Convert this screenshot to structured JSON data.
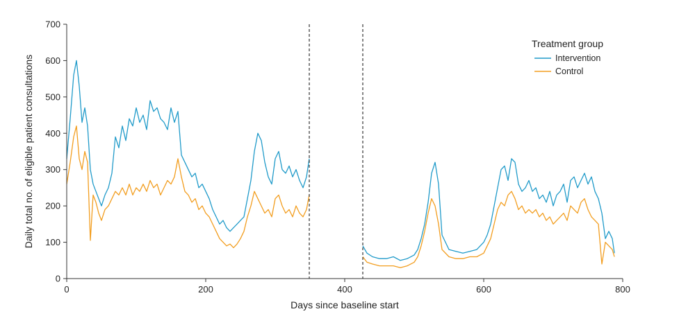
{
  "chart_data": {
    "type": "line",
    "title": "",
    "xlabel": "Days since baseline start",
    "ylabel": "Daily total no. of eligible patient consultations",
    "xlim": [
      0,
      800
    ],
    "ylim": [
      0,
      700
    ],
    "x_ticks": [
      0,
      200,
      400,
      600,
      800
    ],
    "y_ticks": [
      0,
      100,
      200,
      300,
      400,
      500,
      600,
      700
    ],
    "x_tick_labels": [
      "0",
      "200",
      "400",
      "600",
      "800"
    ],
    "y_tick_labels": [
      "0",
      "100",
      "200",
      "300",
      "400",
      "500",
      "600",
      "700"
    ],
    "grid": false,
    "vertical_lines": [
      349,
      426
    ],
    "legend": {
      "title": "Treatment group",
      "placement": "top-right",
      "entries": [
        "Intervention",
        "Control"
      ]
    },
    "series": [
      {
        "name": "Intervention",
        "color": "#1f9ac9",
        "segments": [
          {
            "x": [
              0,
              5,
              10,
              14,
              18,
              22,
              26,
              30,
              34,
              38,
              42,
              46,
              50,
              55,
              60,
              65,
              70,
              75,
              80,
              85,
              90,
              95,
              100,
              105,
              110,
              115,
              120,
              125,
              130,
              135,
              140,
              145,
              150,
              155,
              160,
              165,
              170,
              175,
              180,
              185,
              190,
              195,
              200,
              205,
              210,
              215,
              220,
              225,
              230,
              235,
              240,
              245,
              250,
              255,
              260,
              265,
              270,
              275,
              280,
              285,
              290,
              295,
              300,
              305,
              310,
              315,
              320,
              325,
              330,
              335,
              340,
              345,
              349
            ],
            "y": [
              330,
              440,
              560,
              600,
              530,
              430,
              470,
              420,
              300,
              260,
              240,
              220,
              200,
              230,
              250,
              290,
              390,
              360,
              420,
              380,
              440,
              420,
              470,
              430,
              450,
              410,
              490,
              460,
              470,
              440,
              430,
              410,
              470,
              430,
              460,
              340,
              320,
              300,
              280,
              290,
              250,
              260,
              240,
              220,
              190,
              170,
              150,
              160,
              140,
              130,
              140,
              150,
              160,
              170,
              220,
              270,
              350,
              400,
              380,
              320,
              280,
              260,
              330,
              350,
              300,
              290,
              310,
              280,
              300,
              270,
              250,
              280,
              330
            ]
          },
          {
            "x": [
              426,
              432,
              440,
              450,
              460,
              470,
              480,
              490,
              500,
              505,
              510,
              515,
              520,
              525,
              530,
              535,
              540,
              550,
              560,
              570,
              580,
              590,
              600,
              605,
              610,
              615,
              620,
              625,
              630,
              635,
              640,
              645,
              650,
              655,
              660,
              665,
              670,
              675,
              680,
              685,
              690,
              695,
              700,
              705,
              710,
              715,
              720,
              725,
              730,
              735,
              740,
              745,
              750,
              755,
              760,
              765,
              770,
              775,
              780,
              785,
              788
            ],
            "y": [
              90,
              70,
              60,
              55,
              55,
              60,
              50,
              55,
              65,
              80,
              110,
              150,
              210,
              290,
              320,
              260,
              120,
              80,
              75,
              70,
              75,
              80,
              100,
              120,
              150,
              200,
              250,
              300,
              310,
              270,
              330,
              320,
              260,
              240,
              250,
              270,
              240,
              250,
              220,
              230,
              210,
              240,
              200,
              230,
              240,
              260,
              210,
              270,
              280,
              250,
              270,
              290,
              260,
              280,
              240,
              220,
              180,
              110,
              130,
              110,
              70
            ]
          }
        ]
      },
      {
        "name": "Control",
        "color": "#f29d1e",
        "segments": [
          {
            "x": [
              0,
              5,
              10,
              14,
              18,
              22,
              26,
              30,
              34,
              38,
              42,
              46,
              50,
              55,
              60,
              65,
              70,
              75,
              80,
              85,
              90,
              95,
              100,
              105,
              110,
              115,
              120,
              125,
              130,
              135,
              140,
              145,
              150,
              155,
              160,
              165,
              170,
              175,
              180,
              185,
              190,
              195,
              200,
              205,
              210,
              215,
              220,
              225,
              230,
              235,
              240,
              245,
              250,
              255,
              260,
              265,
              270,
              275,
              280,
              285,
              290,
              295,
              300,
              305,
              310,
              315,
              320,
              325,
              330,
              335,
              340,
              345,
              349
            ],
            "y": [
              260,
              320,
              390,
              420,
              330,
              300,
              350,
              320,
              105,
              230,
              210,
              180,
              160,
              190,
              200,
              220,
              240,
              230,
              250,
              230,
              260,
              230,
              250,
              240,
              260,
              240,
              270,
              250,
              260,
              230,
              250,
              270,
              260,
              280,
              330,
              280,
              240,
              230,
              210,
              220,
              190,
              200,
              180,
              170,
              150,
              130,
              110,
              100,
              90,
              95,
              85,
              95,
              110,
              130,
              170,
              200,
              240,
              220,
              200,
              180,
              190,
              170,
              220,
              230,
              200,
              180,
              190,
              170,
              200,
              180,
              170,
              190,
              230
            ]
          },
          {
            "x": [
              426,
              432,
              440,
              450,
              460,
              470,
              480,
              490,
              500,
              505,
              510,
              515,
              520,
              525,
              530,
              535,
              540,
              550,
              560,
              570,
              580,
              590,
              600,
              605,
              610,
              615,
              620,
              625,
              630,
              635,
              640,
              645,
              650,
              655,
              660,
              665,
              670,
              675,
              680,
              685,
              690,
              695,
              700,
              705,
              710,
              715,
              720,
              725,
              730,
              735,
              740,
              745,
              750,
              755,
              760,
              765,
              770,
              775,
              780,
              785,
              788
            ],
            "y": [
              60,
              45,
              40,
              35,
              35,
              35,
              30,
              35,
              45,
              60,
              90,
              130,
              180,
              220,
              200,
              150,
              80,
              60,
              55,
              55,
              60,
              60,
              70,
              90,
              110,
              150,
              190,
              210,
              200,
              230,
              240,
              220,
              190,
              200,
              180,
              190,
              180,
              190,
              170,
              180,
              160,
              170,
              150,
              160,
              170,
              180,
              160,
              200,
              190,
              180,
              210,
              220,
              190,
              170,
              160,
              150,
              40,
              100,
              90,
              80,
              60
            ]
          }
        ]
      }
    ]
  }
}
